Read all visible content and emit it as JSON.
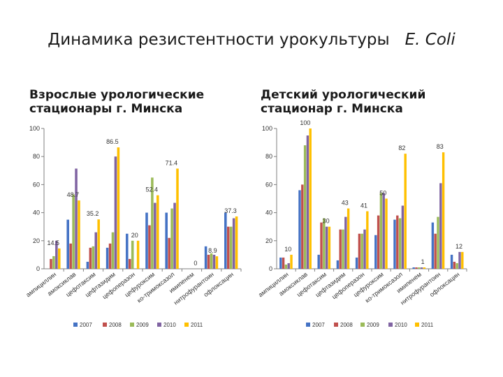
{
  "title": {
    "text": "Динамика резистентности урокультуры",
    "organism": "E. Coli"
  },
  "legend_items": [
    {
      "label": "2007",
      "color": "#4472C4"
    },
    {
      "label": "2008",
      "color": "#C0504D"
    },
    {
      "label": "2009",
      "color": "#9BBB59"
    },
    {
      "label": "2010",
      "color": "#8064A2"
    },
    {
      "label": "2011",
      "color": "#FFC000"
    }
  ],
  "chart_data": [
    {
      "type": "bar",
      "title": "Взрослые урологические стационары г. Минска",
      "ylim": [
        0,
        100
      ],
      "yticks": [
        0,
        20,
        40,
        60,
        80,
        100
      ],
      "grid": false,
      "legend_position": "bottom",
      "categories": [
        "ампициллин",
        "амоксиклав",
        "цефотаксим",
        "цефтазидим",
        "цефоперазон",
        "цефуроксим",
        "ко-тримоксазол",
        "имипенем",
        "нитрофурантоин",
        "офлоксацин"
      ],
      "series": [
        {
          "name": "2007",
          "values": [
            0,
            35,
            5,
            15,
            25,
            40,
            40,
            0,
            16,
            40
          ]
        },
        {
          "name": "2008",
          "values": [
            7,
            18,
            15,
            18,
            7,
            31,
            22,
            0,
            10,
            30
          ]
        },
        {
          "name": "2009",
          "values": [
            9,
            53,
            16,
            26,
            20,
            65,
            43,
            0,
            11,
            30
          ]
        },
        {
          "name": "2010",
          "values": [
            20,
            71.4,
            26,
            80,
            0,
            47,
            47,
            0,
            10,
            36
          ]
        },
        {
          "name": "2011",
          "values": [
            14.5,
            48.7,
            35.2,
            86.5,
            20,
            52.4,
            71.4,
            0,
            8.9,
            37.3
          ]
        }
      ],
      "data_labels": [
        {
          "category": "ампициллин",
          "series": "2011",
          "text": "14.5"
        },
        {
          "category": "амоксиклав",
          "series": "2011",
          "text": "48.7"
        },
        {
          "category": "цефотаксим",
          "series": "2011",
          "text": "35.2"
        },
        {
          "category": "цефтазидим",
          "series": "2011",
          "text": "86.5"
        },
        {
          "category": "цефоперазон",
          "series": "2011",
          "text": "20"
        },
        {
          "category": "цефуроксим",
          "series": "2011",
          "text": "52.4"
        },
        {
          "category": "ко-тримоксазол",
          "series": "2011",
          "text": "71.4"
        },
        {
          "category": "имипенем",
          "series": "2011",
          "text": "0"
        },
        {
          "category": "нитрофурантоин",
          "series": "2011",
          "text": "8.9"
        },
        {
          "category": "офлоксацин",
          "series": "2011",
          "text": "37.3"
        }
      ]
    },
    {
      "type": "bar",
      "title": "Детский урологический стационар г. Минска",
      "ylim": [
        0,
        100
      ],
      "yticks": [
        0,
        20,
        40,
        60,
        80,
        100
      ],
      "grid": false,
      "legend_position": "bottom",
      "categories": [
        "ампициллин",
        "амоксиклав",
        "цефотаксим",
        "цефтазидим",
        "цефоперазон",
        "цефуроксим",
        "ко-тримоксазол",
        "имипенем",
        "нитрофурантоин",
        "офлоксацин"
      ],
      "series": [
        {
          "name": "2007",
          "values": [
            8,
            56,
            10,
            6,
            8,
            24,
            35,
            1,
            33,
            10
          ]
        },
        {
          "name": "2008",
          "values": [
            8,
            60,
            33,
            28,
            25,
            38,
            38,
            1,
            25,
            5
          ]
        },
        {
          "name": "2009",
          "values": [
            3,
            88,
            36,
            28,
            25,
            54,
            36,
            1,
            37,
            4
          ]
        },
        {
          "name": "2010",
          "values": [
            4,
            95,
            30,
            37,
            28,
            54,
            45,
            1,
            61,
            12
          ]
        },
        {
          "name": "2011",
          "values": [
            10,
            100,
            30,
            43,
            41,
            50,
            82,
            1,
            83,
            12
          ]
        }
      ],
      "data_labels": [
        {
          "category": "ампициллин",
          "series": "2011",
          "text": "10"
        },
        {
          "category": "амоксиклав",
          "series": "2011",
          "text": "100"
        },
        {
          "category": "цефотаксим",
          "series": "2011",
          "text": "30"
        },
        {
          "category": "цефтазидим",
          "series": "2011",
          "text": "43"
        },
        {
          "category": "цефоперазон",
          "series": "2011",
          "text": "41"
        },
        {
          "category": "цефуроксим",
          "series": "2011",
          "text": "50"
        },
        {
          "category": "ко-тримоксазол",
          "series": "2011",
          "text": "82"
        },
        {
          "category": "имипенем",
          "series": "2011",
          "text": "1"
        },
        {
          "category": "нитрофурантоин",
          "series": "2011",
          "text": "83"
        },
        {
          "category": "офлоксацин",
          "series": "2011",
          "text": "12"
        }
      ]
    }
  ]
}
